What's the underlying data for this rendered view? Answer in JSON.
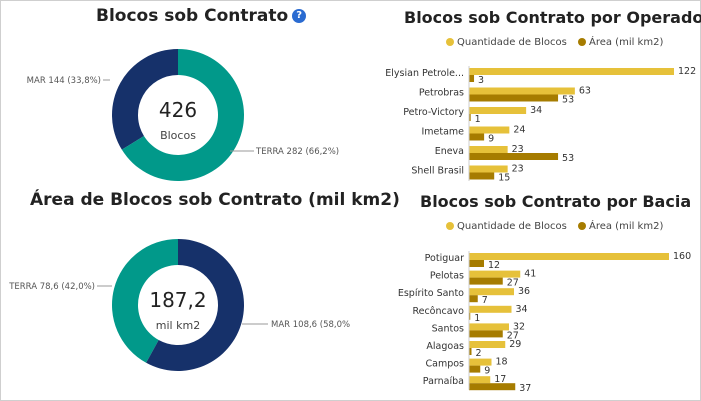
{
  "colors": {
    "terra": "#01998a",
    "mar": "#16316a",
    "quantidade": "#e6c13a",
    "area": "#a67c00"
  },
  "panels": {
    "donut_blocos": {
      "title": "Blocos sob Contrato",
      "help_icon": "?",
      "center_value": "426",
      "center_label": "Blocos",
      "slice_labels": [
        "MAR 144 (33,8%)",
        "TERRA 282 (66,2%)"
      ]
    },
    "donut_area": {
      "title": "Área de Blocos sob Contrato (mil km2)",
      "center_value": "187,2",
      "center_label": "mil km2",
      "slice_labels": [
        "TERRA 78,6 (42,0%)",
        "MAR 108,6 (58,0%)"
      ]
    },
    "bar_operador": {
      "title": "Blocos sob Contrato por Operador",
      "legend": [
        "Quantidade de Blocos",
        "Área (mil km2)"
      ]
    },
    "bar_bacia": {
      "title": "Blocos sob Contrato por Bacia",
      "legend": [
        "Quantidade de Blocos",
        "Área (mil km2)"
      ]
    }
  },
  "chart_data": [
    {
      "type": "pie",
      "title": "Blocos sob Contrato",
      "categories": [
        "MAR",
        "TERRA"
      ],
      "values": [
        144,
        282
      ],
      "percent": [
        33.8,
        66.2
      ],
      "total": 426
    },
    {
      "type": "pie",
      "title": "Área de Blocos sob Contrato (mil km2)",
      "categories": [
        "TERRA",
        "MAR"
      ],
      "values": [
        78.6,
        108.6
      ],
      "percent": [
        42.0,
        58.0
      ],
      "total": 187.2
    },
    {
      "type": "bar",
      "orientation": "horizontal",
      "title": "Blocos sob Contrato por Operador",
      "categories": [
        "Elysian Petrole...",
        "Petrobras",
        "Petro-Victory",
        "Imetame",
        "Eneva",
        "Shell Brasil"
      ],
      "series": [
        {
          "name": "Quantidade de Blocos",
          "values": [
            122,
            63,
            34,
            24,
            23,
            23
          ]
        },
        {
          "name": "Área (mil km2)",
          "values": [
            3,
            53,
            1,
            9,
            53,
            15
          ]
        }
      ]
    },
    {
      "type": "bar",
      "orientation": "horizontal",
      "title": "Blocos sob Contrato por Bacia",
      "categories": [
        "Potiguar",
        "Pelotas",
        "Espírito Santo",
        "Recôncavo",
        "Santos",
        "Alagoas",
        "Campos",
        "Parnaíba"
      ],
      "series": [
        {
          "name": "Quantidade de Blocos",
          "values": [
            160,
            41,
            36,
            34,
            32,
            29,
            18,
            17
          ]
        },
        {
          "name": "Área (mil km2)",
          "values": [
            12,
            27,
            7,
            1,
            27,
            2,
            9,
            37
          ]
        }
      ]
    }
  ]
}
